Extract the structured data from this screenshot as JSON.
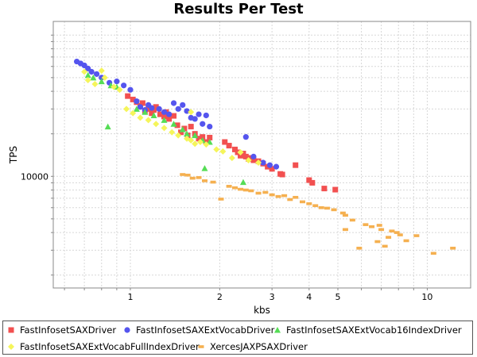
{
  "chart_data": {
    "type": "scatter",
    "title": "Results Per Test",
    "xlabel": "kbs",
    "ylabel": "TPS",
    "x_scale": "log",
    "y_scale": "log",
    "xlim": [
      0.55,
      14
    ],
    "ylim": [
      1620,
      125000
    ],
    "x_tick_labels": [
      {
        "value": 1,
        "label": "1"
      },
      {
        "value": 2,
        "label": "2"
      },
      {
        "value": 3,
        "label": "3"
      },
      {
        "value": 4,
        "label": "4"
      },
      {
        "value": 5,
        "label": "5"
      },
      {
        "value": 10,
        "label": "10"
      }
    ],
    "y_tick_labels": [
      {
        "value": 10000,
        "label": "10000"
      }
    ],
    "grid": true,
    "legend_position": "bottom",
    "series": [
      {
        "name": "FastInfosetSAXDriver",
        "marker": "square",
        "color": "#f25050",
        "points": [
          [
            0.98,
            37000
          ],
          [
            1.02,
            35000
          ],
          [
            1.05,
            33500
          ],
          [
            1.08,
            31500
          ],
          [
            1.1,
            33000
          ],
          [
            1.12,
            29000
          ],
          [
            1.15,
            30000
          ],
          [
            1.18,
            28000
          ],
          [
            1.2,
            29500
          ],
          [
            1.22,
            31000
          ],
          [
            1.26,
            27500
          ],
          [
            1.3,
            26500
          ],
          [
            1.32,
            28500
          ],
          [
            1.35,
            25500
          ],
          [
            1.4,
            26800
          ],
          [
            1.44,
            23000
          ],
          [
            1.48,
            20500
          ],
          [
            1.52,
            21800
          ],
          [
            1.56,
            19500
          ],
          [
            1.6,
            22500
          ],
          [
            1.65,
            20000
          ],
          [
            1.7,
            18500
          ],
          [
            1.75,
            19000
          ],
          [
            1.8,
            17500
          ],
          [
            1.85,
            18800
          ],
          [
            2.08,
            17500
          ],
          [
            2.15,
            16500
          ],
          [
            2.25,
            15500
          ],
          [
            2.3,
            14800
          ],
          [
            2.35,
            14000
          ],
          [
            2.4,
            14500
          ],
          [
            2.45,
            13800
          ],
          [
            2.5,
            13300
          ],
          [
            2.55,
            13500
          ],
          [
            2.6,
            13000
          ],
          [
            2.7,
            12800
          ],
          [
            2.8,
            12300
          ],
          [
            2.9,
            11700
          ],
          [
            3.0,
            11300
          ],
          [
            3.2,
            10400
          ],
          [
            3.25,
            10300
          ],
          [
            3.6,
            12000
          ],
          [
            4.0,
            9400
          ],
          [
            4.1,
            9000
          ],
          [
            4.5,
            8200
          ],
          [
            4.9,
            8050
          ]
        ]
      },
      {
        "name": "FastInfosetSAXExtVocabDriver",
        "marker": "circle",
        "color": "#5555ee",
        "points": [
          [
            0.66,
            65000
          ],
          [
            0.68,
            63000
          ],
          [
            0.7,
            61000
          ],
          [
            0.72,
            58000
          ],
          [
            0.74,
            55000
          ],
          [
            0.77,
            53000
          ],
          [
            0.8,
            50000
          ],
          [
            0.85,
            46000
          ],
          [
            0.9,
            47000
          ],
          [
            0.95,
            44000
          ],
          [
            1.0,
            41000
          ],
          [
            1.05,
            34000
          ],
          [
            1.08,
            31000
          ],
          [
            1.12,
            29500
          ],
          [
            1.15,
            32000
          ],
          [
            1.18,
            30500
          ],
          [
            1.25,
            30000
          ],
          [
            1.3,
            28500
          ],
          [
            1.35,
            27500
          ],
          [
            1.4,
            33000
          ],
          [
            1.45,
            30000
          ],
          [
            1.5,
            32000
          ],
          [
            1.55,
            29000
          ],
          [
            1.6,
            26000
          ],
          [
            1.65,
            25500
          ],
          [
            1.7,
            27500
          ],
          [
            1.75,
            23500
          ],
          [
            1.8,
            27000
          ],
          [
            1.85,
            22500
          ],
          [
            2.45,
            19000
          ],
          [
            2.6,
            13800
          ],
          [
            2.8,
            12500
          ],
          [
            2.95,
            12000
          ],
          [
            3.1,
            11700
          ]
        ]
      },
      {
        "name": "FastInfosetSAXExtVocab16IndexDriver",
        "marker": "triangle",
        "color": "#55dd55",
        "points": [
          [
            0.72,
            52000
          ],
          [
            0.75,
            50000
          ],
          [
            0.8,
            47000
          ],
          [
            0.86,
            44000
          ],
          [
            0.9,
            43000
          ],
          [
            0.84,
            22500
          ],
          [
            1.05,
            30000
          ],
          [
            1.12,
            28500
          ],
          [
            1.2,
            27000
          ],
          [
            1.3,
            25000
          ],
          [
            1.4,
            23500
          ],
          [
            1.5,
            21500
          ],
          [
            1.55,
            20000
          ],
          [
            1.65,
            19500
          ],
          [
            1.75,
            18000
          ],
          [
            1.85,
            17500
          ],
          [
            1.78,
            11400
          ],
          [
            2.4,
            9100
          ]
        ]
      },
      {
        "name": "FastInfosetSAXExtVocabFullIndexDriver",
        "marker": "diamond",
        "color": "#f5f55a",
        "points": [
          [
            0.7,
            55000
          ],
          [
            0.72,
            48000
          ],
          [
            0.76,
            45000
          ],
          [
            0.8,
            56000
          ],
          [
            0.82,
            50000
          ],
          [
            0.88,
            43000
          ],
          [
            0.92,
            41000
          ],
          [
            0.97,
            30000
          ],
          [
            1.02,
            28000
          ],
          [
            1.08,
            26000
          ],
          [
            1.15,
            25000
          ],
          [
            1.22,
            23500
          ],
          [
            1.3,
            22000
          ],
          [
            1.38,
            20500
          ],
          [
            1.45,
            19500
          ],
          [
            1.55,
            18500
          ],
          [
            1.6,
            18000
          ],
          [
            1.65,
            17000
          ],
          [
            1.72,
            17500
          ],
          [
            1.8,
            16800
          ],
          [
            1.95,
            15500
          ],
          [
            2.05,
            15000
          ],
          [
            2.2,
            13500
          ],
          [
            2.35,
            14800
          ],
          [
            2.5,
            13000
          ],
          [
            2.7,
            12500
          ],
          [
            1.6,
            28500
          ]
        ]
      },
      {
        "name": "XercesJAXPSAXDriver",
        "marker": "rect",
        "color": "#f5b050",
        "points": [
          [
            1.5,
            10300
          ],
          [
            1.56,
            10200
          ],
          [
            1.62,
            9700
          ],
          [
            1.7,
            9800
          ],
          [
            1.78,
            9300
          ],
          [
            1.9,
            9100
          ],
          [
            2.02,
            6900
          ],
          [
            2.15,
            8500
          ],
          [
            2.25,
            8300
          ],
          [
            2.35,
            8100
          ],
          [
            2.45,
            8000
          ],
          [
            2.55,
            7900
          ],
          [
            2.7,
            7600
          ],
          [
            2.85,
            7700
          ],
          [
            3.0,
            7400
          ],
          [
            3.15,
            7200
          ],
          [
            3.3,
            7300
          ],
          [
            3.45,
            6850
          ],
          [
            3.6,
            7100
          ],
          [
            3.8,
            6600
          ],
          [
            4.0,
            6400
          ],
          [
            4.2,
            6200
          ],
          [
            4.4,
            6000
          ],
          [
            4.6,
            5950
          ],
          [
            4.85,
            5800
          ],
          [
            5.2,
            5500
          ],
          [
            5.3,
            5300
          ],
          [
            5.3,
            4200
          ],
          [
            5.6,
            4900
          ],
          [
            5.9,
            3100
          ],
          [
            6.2,
            4550
          ],
          [
            6.5,
            4400
          ],
          [
            6.8,
            3450
          ],
          [
            6.9,
            4500
          ],
          [
            7.0,
            4200
          ],
          [
            7.2,
            3200
          ],
          [
            7.4,
            3700
          ],
          [
            7.6,
            4100
          ],
          [
            7.9,
            4000
          ],
          [
            8.1,
            3850
          ],
          [
            8.5,
            3500
          ],
          [
            9.2,
            3800
          ],
          [
            10.5,
            2850
          ],
          [
            12.2,
            3100
          ]
        ]
      }
    ]
  }
}
